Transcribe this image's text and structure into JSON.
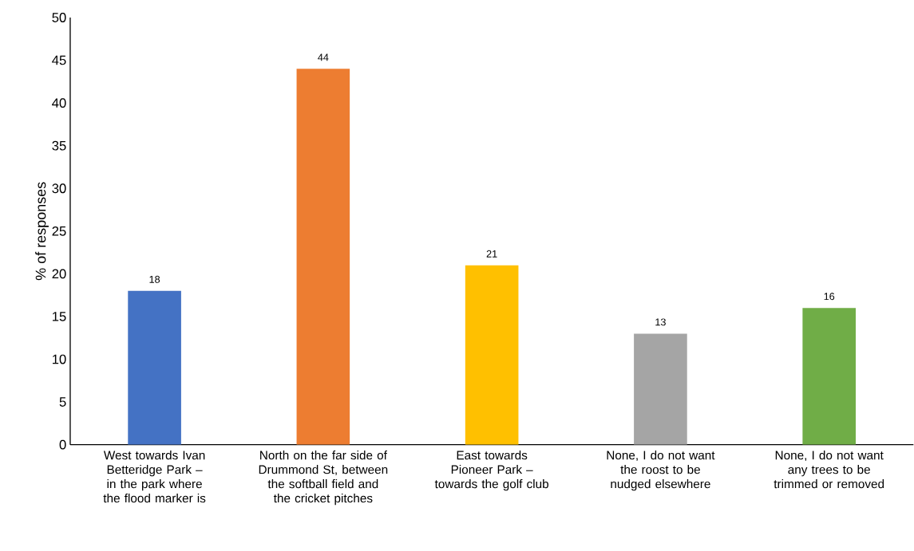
{
  "chart_data": {
    "type": "bar",
    "ylabel": "% of responses",
    "categories": [
      "West towards Ivan Betteridge Park – in the park where the flood marker is",
      "North on the far side of Drummond St, between the softball field and the cricket pitches",
      "East towards Pioneer Park – towards the golf club",
      "None, I do not want the roost to be nudged elsewhere",
      "None, I do not want any trees to be trimmed or removed"
    ],
    "values": [
      18,
      44,
      21,
      13,
      16
    ],
    "colors": [
      "#4472c4",
      "#ed7d31",
      "#ffc000",
      "#a5a5a5",
      "#70ad47"
    ],
    "ylim": [
      0,
      50
    ],
    "yticks": [
      0,
      5,
      10,
      15,
      20,
      25,
      30,
      35,
      40,
      45,
      50
    ],
    "data_labels": true,
    "grid": false
  }
}
